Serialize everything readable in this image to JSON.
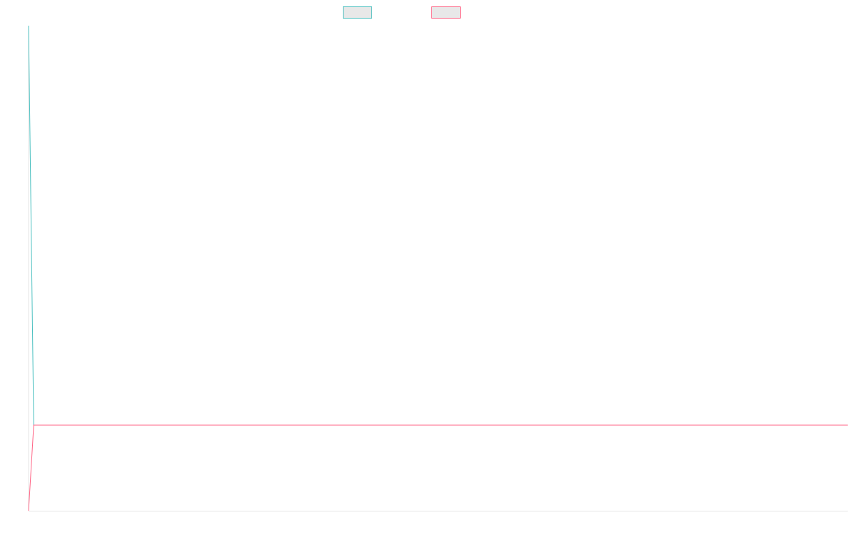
{
  "chart_data": {
    "type": "line",
    "title": "",
    "xlabel": "",
    "ylabel": "",
    "grid": false,
    "legend": "top-center",
    "x": [
      0,
      1,
      2,
      3,
      4,
      5,
      6,
      7,
      8,
      9,
      10,
      11,
      12,
      13,
      14,
      15,
      16,
      17,
      18,
      19,
      20,
      21,
      22,
      23,
      24,
      25,
      26,
      27,
      28,
      29,
      30,
      31,
      32,
      33,
      34,
      35,
      36,
      37,
      38,
      39,
      40,
      41,
      42,
      43,
      44,
      45,
      46,
      47,
      48,
      49,
      50,
      51,
      52,
      53,
      54,
      55,
      56,
      57,
      58,
      59,
      60,
      61,
      62,
      63,
      64,
      65,
      66,
      67,
      68,
      69,
      70,
      71,
      72,
      73,
      74,
      75,
      76,
      77,
      78,
      79,
      80,
      81,
      82,
      83,
      84,
      85,
      86,
      87,
      88,
      89,
      90,
      91,
      92,
      93,
      94,
      95,
      96,
      97,
      98,
      99,
      100,
      101,
      102,
      103,
      104,
      105,
      106,
      107,
      108,
      109,
      110,
      111,
      112,
      113,
      114,
      115,
      116,
      117,
      118,
      119,
      120,
      121,
      122,
      123,
      124,
      125,
      126,
      127,
      128,
      129,
      130,
      131,
      132,
      133,
      134,
      135,
      136,
      137,
      138,
      139,
      140,
      141,
      142,
      143,
      144,
      145,
      146,
      147,
      148,
      149,
      150,
      151,
      152,
      153,
      154,
      155,
      156,
      157,
      158,
      159
    ],
    "ylim": [
      0,
      680
    ],
    "series": [
      {
        "color": "#4bc0c0",
        "values": [
          680,
          120,
          120,
          120,
          120,
          120,
          120,
          120,
          120,
          120,
          120,
          120,
          120,
          120,
          120,
          120,
          120,
          120,
          120,
          120,
          120,
          120,
          120,
          120,
          120,
          120,
          120,
          120,
          120,
          120,
          120,
          120,
          120,
          120,
          120,
          120,
          120,
          120,
          120,
          120,
          120,
          120,
          120,
          120,
          120,
          120,
          120,
          120,
          120,
          120,
          120,
          120,
          120,
          120,
          120,
          120,
          120,
          120,
          120,
          120,
          120,
          120,
          120,
          120,
          120,
          120,
          120,
          120,
          120,
          120,
          120,
          120,
          120,
          120,
          120,
          120,
          120,
          120,
          120,
          120,
          120,
          120,
          120,
          120,
          120,
          120,
          120,
          120,
          120,
          120,
          120,
          120,
          120,
          120,
          120,
          120,
          120,
          120,
          120,
          120,
          120,
          120,
          120,
          120,
          120,
          120,
          120,
          120,
          120,
          120,
          120,
          120,
          120,
          120,
          120,
          120,
          120,
          120,
          120,
          120,
          120,
          120,
          120,
          120,
          120,
          120,
          120,
          120,
          120,
          120,
          120,
          120,
          120,
          120,
          120,
          120,
          120,
          120,
          120,
          120,
          120,
          120,
          120,
          120,
          120,
          120,
          120,
          120,
          120,
          120,
          120,
          120,
          120,
          120,
          120,
          120,
          120,
          120,
          120,
          120
        ]
      },
      {
        "color": "#ff6384",
        "values": [
          0,
          120,
          120,
          120,
          120,
          120,
          120,
          120,
          120,
          120,
          120,
          120,
          120,
          120,
          120,
          120,
          120,
          120,
          120,
          120,
          120,
          120,
          120,
          120,
          120,
          120,
          120,
          120,
          120,
          120,
          120,
          120,
          120,
          120,
          120,
          120,
          120,
          120,
          120,
          120,
          120,
          120,
          120,
          120,
          120,
          120,
          120,
          120,
          120,
          120,
          120,
          120,
          120,
          120,
          120,
          120,
          120,
          120,
          120,
          120,
          120,
          120,
          120,
          120,
          120,
          120,
          120,
          120,
          120,
          120,
          120,
          120,
          120,
          120,
          120,
          120,
          120,
          120,
          120,
          120,
          120,
          120,
          120,
          120,
          120,
          120,
          120,
          120,
          120,
          120,
          120,
          120,
          120,
          120,
          120,
          120,
          120,
          120,
          120,
          120,
          120,
          120,
          120,
          120,
          120,
          120,
          120,
          120,
          120,
          120,
          120,
          120,
          120,
          120,
          120,
          120,
          120,
          120,
          120,
          120,
          120,
          120,
          120,
          120,
          120,
          120,
          120,
          120,
          120,
          120,
          120,
          120,
          120,
          120,
          120,
          120,
          120,
          120,
          120,
          120,
          120,
          120,
          120,
          120,
          120,
          120,
          120,
          120,
          120,
          120,
          120,
          120,
          120,
          120,
          120,
          120,
          120,
          120,
          120,
          120
        ]
      }
    ]
  }
}
